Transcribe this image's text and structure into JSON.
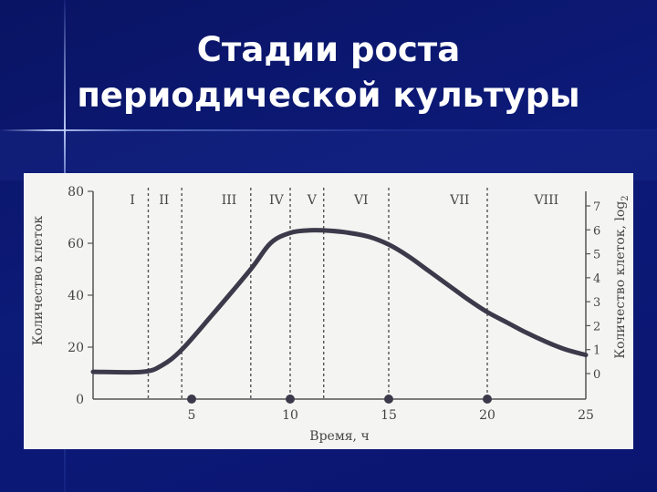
{
  "title_line1": "Стадии роста",
  "title_line2": "периодической культуры",
  "chart_data": {
    "type": "line",
    "xlabel": "Время, ч",
    "ylabel": "Количество клеток",
    "ylabel_right": "Количество клеток, log",
    "ylabel_right_sub": "2",
    "xlim": [
      0,
      25
    ],
    "ylim": [
      0,
      80
    ],
    "ylim_right": [
      0,
      7
    ],
    "x_ticks": [
      "5",
      "10",
      "15",
      "20",
      "25"
    ],
    "y_ticks": [
      "0",
      "20",
      "40",
      "60",
      "80"
    ],
    "y_ticks_right": [
      "0",
      "1",
      "2",
      "3",
      "4",
      "5",
      "6",
      "7"
    ],
    "stages": [
      "I",
      "II",
      "III",
      "IV",
      "V",
      "VI",
      "VII",
      "VIII"
    ],
    "stage_boundaries": [
      2.8,
      4.5,
      8,
      10,
      11.7,
      15,
      20
    ],
    "x_markers": [
      5,
      10,
      15,
      20
    ],
    "series": [
      {
        "color": "#3c3a4a",
        "x": [
          0,
          2.5,
          3.5,
          4.5,
          6,
          8,
          9,
          10,
          11,
          12,
          13,
          14,
          15,
          16,
          17,
          18,
          19,
          20,
          21,
          22,
          23,
          24,
          25
        ],
        "y": [
          10.5,
          10.5,
          13,
          19,
          32,
          50,
          60,
          64,
          65,
          64.8,
          64,
          62.5,
          59.5,
          55,
          49.5,
          44,
          38.5,
          33.5,
          29.5,
          25.5,
          22,
          19,
          17
        ]
      }
    ]
  }
}
